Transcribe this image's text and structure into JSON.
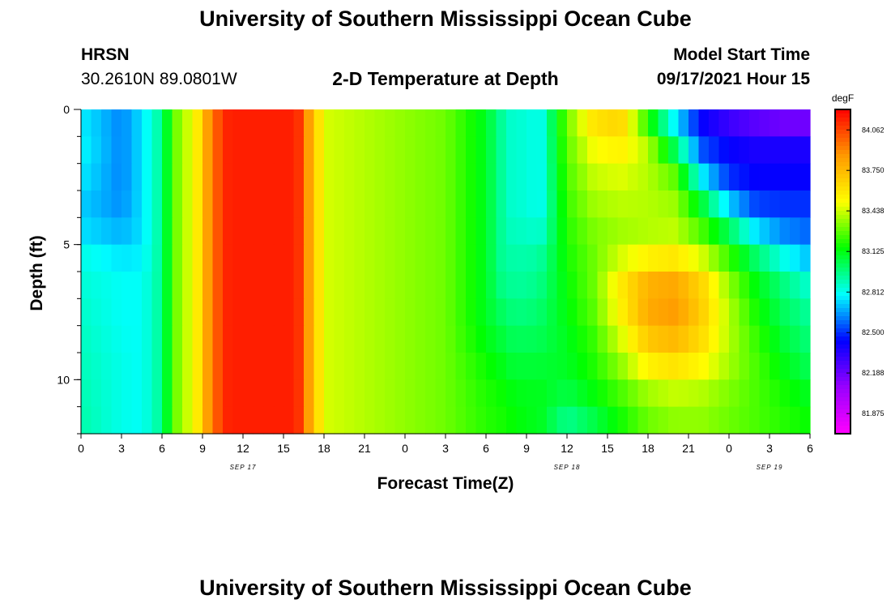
{
  "header": {
    "title_top": "University of Southern Mississippi Ocean Cube",
    "station_name": "HRSN",
    "station_coords": "30.2610N  89.0801W",
    "plot_title": "2-D Temperature at Depth",
    "model_start_label": "Model Start Time",
    "model_start_value": "09/17/2021 Hour 15",
    "title_bottom": "University of Southern Mississippi Ocean Cube"
  },
  "chart_data": {
    "type": "heatmap",
    "title": "2-D Temperature at Depth",
    "xlabel": "Forecast Time(Z)",
    "ylabel": "Depth (ft)",
    "colorbar_unit": "degF",
    "x_ticks": [
      "0",
      "3",
      "6",
      "9",
      "12",
      "15",
      "18",
      "21",
      "0",
      "3",
      "6",
      "9",
      "12",
      "15",
      "18",
      "21",
      "0",
      "3",
      "6"
    ],
    "x_range_hours": [
      0,
      54
    ],
    "date_labels": [
      {
        "label": "SEP 17",
        "hour": 12
      },
      {
        "label": "SEP 18",
        "hour": 36
      },
      {
        "label": "SEP 19",
        "hour": 51
      }
    ],
    "y_ticks": [
      "0",
      "5",
      "10"
    ],
    "y_range_ft": [
      0,
      12
    ],
    "y_inverted": true,
    "colorbar_ticks": [
      "84.062",
      "83.750",
      "83.438",
      "83.125",
      "82.812",
      "82.500",
      "82.188",
      "81.875"
    ],
    "colorbar_range": [
      81.72,
      84.22
    ],
    "colors": [
      "#ff00ff",
      "#9900ff",
      "#0000ff",
      "#00ffff",
      "#00ff00",
      "#ffff00",
      "#ff9900",
      "#ff0000"
    ],
    "depth_levels_ft": [
      0,
      1,
      2,
      3,
      4,
      5,
      6,
      7,
      8,
      9,
      10,
      11,
      12
    ],
    "time_hours": [
      0,
      3,
      4.5,
      6,
      6.5,
      7,
      8,
      9,
      9.5,
      10,
      10.5,
      11,
      12,
      14,
      16,
      16.5,
      17,
      17.5,
      18,
      21,
      24,
      27,
      30,
      31,
      32,
      33,
      34,
      36,
      38,
      40,
      42,
      44,
      46,
      48,
      50,
      52,
      54
    ],
    "temperature_degF": [
      [
        82.75,
        82.62,
        82.75,
        82.95,
        83.15,
        83.3,
        83.45,
        83.65,
        83.9,
        84.0,
        84.1,
        84.15,
        84.15,
        84.15,
        84.15,
        83.95,
        83.8,
        83.65,
        83.45,
        83.4,
        83.35,
        83.3,
        83.1,
        82.95,
        82.85,
        82.85,
        82.8,
        83.3,
        83.65,
        83.7,
        83.0,
        82.7,
        82.35,
        82.2,
        82.1,
        82.0,
        82.0
      ],
      [
        82.8,
        82.62,
        82.75,
        82.95,
        83.15,
        83.3,
        83.45,
        83.65,
        83.9,
        84.0,
        84.1,
        84.15,
        84.15,
        84.15,
        84.15,
        83.95,
        83.8,
        83.65,
        83.45,
        83.4,
        83.35,
        83.3,
        83.1,
        82.95,
        82.85,
        82.85,
        82.8,
        83.3,
        83.55,
        83.6,
        83.4,
        82.85,
        82.5,
        82.4,
        82.35,
        82.35,
        82.35
      ],
      [
        82.78,
        82.62,
        82.75,
        82.95,
        83.15,
        83.3,
        83.45,
        83.65,
        83.9,
        84.0,
        84.1,
        84.15,
        84.15,
        84.15,
        84.15,
        83.95,
        83.8,
        83.65,
        83.45,
        83.4,
        83.35,
        83.3,
        83.1,
        82.95,
        82.85,
        82.85,
        82.8,
        83.25,
        83.45,
        83.5,
        83.4,
        83.2,
        82.6,
        82.45,
        82.4,
        82.4,
        82.4
      ],
      [
        82.75,
        82.62,
        82.75,
        82.95,
        83.15,
        83.3,
        83.45,
        83.65,
        83.9,
        84.0,
        84.1,
        84.15,
        84.15,
        84.15,
        84.15,
        83.95,
        83.8,
        83.65,
        83.45,
        83.4,
        83.35,
        83.3,
        83.1,
        82.95,
        82.85,
        82.85,
        82.8,
        83.25,
        83.4,
        83.42,
        83.4,
        83.35,
        82.95,
        82.55,
        82.45,
        82.45,
        82.45
      ],
      [
        82.7,
        82.65,
        82.75,
        82.95,
        83.15,
        83.3,
        83.45,
        83.65,
        83.9,
        84.0,
        84.1,
        84.15,
        84.15,
        84.15,
        84.15,
        83.95,
        83.8,
        83.65,
        83.45,
        83.4,
        83.35,
        83.3,
        83.1,
        82.95,
        82.85,
        82.85,
        82.8,
        83.2,
        83.35,
        83.4,
        83.4,
        83.38,
        83.2,
        82.9,
        82.6,
        82.55,
        82.55
      ],
      [
        82.8,
        82.72,
        82.75,
        82.95,
        83.15,
        83.3,
        83.45,
        83.65,
        83.9,
        84.0,
        84.1,
        84.15,
        84.15,
        84.15,
        84.15,
        83.95,
        83.8,
        83.65,
        83.45,
        83.4,
        83.35,
        83.3,
        83.1,
        82.95,
        82.9,
        82.9,
        82.9,
        83.2,
        83.3,
        83.35,
        83.4,
        83.45,
        83.3,
        83.15,
        82.9,
        82.7,
        82.6
      ],
      [
        82.85,
        82.8,
        82.8,
        82.95,
        83.15,
        83.3,
        83.45,
        83.65,
        83.9,
        84.0,
        84.1,
        84.15,
        84.15,
        84.15,
        84.15,
        83.95,
        83.8,
        83.65,
        83.45,
        83.4,
        83.35,
        83.3,
        83.1,
        82.95,
        82.92,
        82.92,
        82.95,
        83.15,
        83.3,
        83.55,
        83.7,
        83.72,
        83.6,
        83.3,
        83.1,
        82.95,
        82.8
      ],
      [
        82.85,
        82.8,
        82.8,
        82.95,
        83.15,
        83.3,
        83.45,
        83.65,
        83.9,
        84.0,
        84.1,
        84.15,
        84.15,
        84.15,
        84.15,
        83.95,
        83.8,
        83.65,
        83.45,
        83.4,
        83.35,
        83.3,
        83.1,
        83.0,
        82.95,
        82.95,
        82.98,
        83.15,
        83.3,
        83.6,
        83.85,
        83.9,
        83.7,
        83.4,
        83.15,
        83.0,
        82.9
      ],
      [
        82.88,
        82.8,
        82.8,
        82.95,
        83.15,
        83.3,
        83.45,
        83.65,
        83.9,
        84.0,
        84.1,
        84.15,
        84.15,
        84.15,
        84.15,
        83.95,
        83.8,
        83.65,
        83.45,
        83.4,
        83.35,
        83.3,
        83.1,
        83.05,
        83.0,
        83.0,
        83.02,
        83.12,
        83.25,
        83.5,
        83.75,
        83.8,
        83.65,
        83.4,
        83.2,
        83.05,
        82.95
      ],
      [
        82.88,
        82.82,
        82.8,
        82.95,
        83.15,
        83.3,
        83.45,
        83.65,
        83.9,
        84.0,
        84.1,
        84.15,
        84.15,
        84.15,
        84.15,
        83.95,
        83.8,
        83.65,
        83.45,
        83.4,
        83.35,
        83.3,
        83.15,
        83.1,
        83.05,
        83.05,
        83.05,
        83.1,
        83.2,
        83.4,
        83.65,
        83.7,
        83.6,
        83.4,
        83.25,
        83.1,
        83.0
      ],
      [
        82.9,
        82.82,
        82.8,
        82.95,
        83.15,
        83.3,
        83.45,
        83.65,
        83.9,
        84.0,
        84.1,
        84.15,
        84.15,
        84.15,
        84.15,
        83.95,
        83.8,
        83.65,
        83.45,
        83.4,
        83.35,
        83.3,
        83.18,
        83.15,
        83.1,
        83.1,
        83.1,
        83.1,
        83.18,
        83.3,
        83.45,
        83.5,
        83.45,
        83.35,
        83.25,
        83.15,
        83.05
      ],
      [
        82.9,
        82.82,
        82.8,
        82.95,
        83.15,
        83.3,
        83.45,
        83.65,
        83.9,
        84.0,
        84.1,
        84.15,
        84.15,
        84.15,
        84.15,
        83.95,
        83.8,
        83.65,
        83.45,
        83.4,
        83.35,
        83.3,
        83.2,
        83.18,
        83.15,
        83.12,
        83.12,
        83.0,
        83.1,
        83.2,
        83.3,
        83.35,
        83.35,
        83.3,
        83.25,
        83.2,
        83.15
      ],
      [
        82.92,
        82.82,
        82.8,
        82.95,
        83.15,
        83.3,
        83.45,
        83.65,
        83.9,
        84.0,
        84.1,
        84.15,
        84.15,
        84.15,
        84.15,
        83.95,
        83.8,
        83.65,
        83.45,
        83.4,
        83.35,
        83.3,
        83.2,
        83.18,
        83.15,
        83.12,
        83.1,
        82.9,
        83.0,
        83.15,
        83.3,
        83.35,
        83.35,
        83.3,
        83.25,
        83.2,
        83.15
      ]
    ]
  }
}
